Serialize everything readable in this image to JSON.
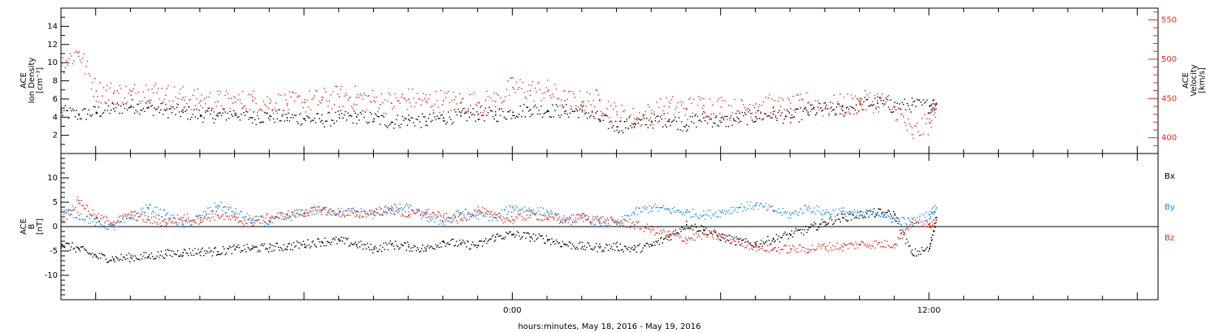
{
  "x_axis_label": "hours:minutes, May 18, 2016 - May 19, 2016",
  "chart_data": [
    {
      "type": "scatter",
      "panel": "top",
      "ylabel_left": [
        "ACE",
        "Ion Density",
        "[cm⁻³]"
      ],
      "ylabel_right": [
        "ACE",
        "Velocity",
        "[km/s]"
      ],
      "ylim_left": [
        0,
        16
      ],
      "ylim_right": [
        380,
        565
      ],
      "left_ticks": [
        2,
        4,
        6,
        8,
        10,
        12,
        14
      ],
      "right_ticks": [
        400,
        450,
        500,
        550
      ],
      "xlim_hours": [
        -13.0,
        18.6
      ],
      "series": [
        {
          "axis": "left",
          "color": "#000000",
          "points": [
            [
              -13.0,
              4.6
            ],
            [
              -12.5,
              4.3
            ],
            [
              -12.0,
              4.6
            ],
            [
              -11.5,
              5.0
            ],
            [
              -11.0,
              5.3
            ],
            [
              -10.5,
              5.1
            ],
            [
              -10.0,
              4.8
            ],
            [
              -9.5,
              4.6
            ],
            [
              -9.0,
              4.3
            ],
            [
              -8.5,
              4.2
            ],
            [
              -8.0,
              4.5
            ],
            [
              -7.5,
              4.0
            ],
            [
              -7.0,
              4.2
            ],
            [
              -6.5,
              4.0
            ],
            [
              -6.0,
              3.9
            ],
            [
              -5.5,
              3.7
            ],
            [
              -5.0,
              4.0
            ],
            [
              -4.5,
              4.1
            ],
            [
              -4.0,
              3.9
            ],
            [
              -3.5,
              3.5
            ],
            [
              -3.0,
              3.8
            ],
            [
              -2.5,
              3.6
            ],
            [
              -2.0,
              4.0
            ],
            [
              -1.5,
              4.2
            ],
            [
              -1.0,
              4.4
            ],
            [
              -0.5,
              4.3
            ],
            [
              0.0,
              4.6
            ],
            [
              0.5,
              4.9
            ],
            [
              1.0,
              4.8
            ],
            [
              1.5,
              4.7
            ],
            [
              2.0,
              4.8
            ],
            [
              2.5,
              3.8
            ],
            [
              3.0,
              3.0
            ],
            [
              3.5,
              3.4
            ],
            [
              4.0,
              3.6
            ],
            [
              4.5,
              3.8
            ],
            [
              5.0,
              3.2
            ],
            [
              5.5,
              4.0
            ],
            [
              6.0,
              3.5
            ],
            [
              6.5,
              3.9
            ],
            [
              7.0,
              4.1
            ],
            [
              7.5,
              4.4
            ],
            [
              8.0,
              4.0
            ],
            [
              8.5,
              4.6
            ],
            [
              9.0,
              5.0
            ],
            [
              9.5,
              4.8
            ],
            [
              10.0,
              5.5
            ],
            [
              10.5,
              5.6
            ],
            [
              11.0,
              5.2
            ],
            [
              11.5,
              5.4
            ],
            [
              12.0,
              5.3
            ],
            [
              12.2,
              5.5
            ]
          ]
        },
        {
          "axis": "right",
          "color": "#e8281e",
          "points": [
            [
              -13.0,
              495
            ],
            [
              -12.5,
              510
            ],
            [
              -12.0,
              460
            ],
            [
              -11.5,
              458
            ],
            [
              -11.0,
              455
            ],
            [
              -10.5,
              462
            ],
            [
              -10.0,
              455
            ],
            [
              -9.5,
              452
            ],
            [
              -9.0,
              448
            ],
            [
              -8.5,
              447
            ],
            [
              -8.0,
              446
            ],
            [
              -7.5,
              448
            ],
            [
              -7.0,
              445
            ],
            [
              -6.5,
              444
            ],
            [
              -6.0,
              446
            ],
            [
              -5.5,
              449
            ],
            [
              -5.0,
              453
            ],
            [
              -4.5,
              452
            ],
            [
              -4.0,
              448
            ],
            [
              -3.5,
              445
            ],
            [
              -3.0,
              450
            ],
            [
              -2.5,
              447
            ],
            [
              -2.0,
              448
            ],
            [
              -1.5,
              446
            ],
            [
              -1.0,
              445
            ],
            [
              -0.5,
              447
            ],
            [
              0.0,
              465
            ],
            [
              0.5,
              461
            ],
            [
              1.0,
              460
            ],
            [
              1.5,
              448
            ],
            [
              2.0,
              446
            ],
            [
              2.5,
              448
            ],
            [
              3.0,
              430
            ],
            [
              3.5,
              425
            ],
            [
              4.0,
              432
            ],
            [
              4.5,
              440
            ],
            [
              5.0,
              438
            ],
            [
              5.5,
              442
            ],
            [
              6.0,
              440
            ],
            [
              6.5,
              435
            ],
            [
              7.0,
              444
            ],
            [
              7.5,
              440
            ],
            [
              8.0,
              438
            ],
            [
              8.5,
              445
            ],
            [
              9.0,
              440
            ],
            [
              9.5,
              442
            ],
            [
              10.0,
              445
            ],
            [
              10.5,
              448
            ],
            [
              11.0,
              440
            ],
            [
              11.5,
              405
            ],
            [
              12.0,
              420
            ],
            [
              12.2,
              445
            ]
          ]
        }
      ]
    },
    {
      "type": "scatter",
      "panel": "bottom",
      "ylabel_left": [
        "ACE",
        "B",
        "[nT]"
      ],
      "ylim": [
        -15,
        15
      ],
      "ticks": [
        -10,
        -5,
        0,
        5,
        10
      ],
      "xlim_hours": [
        -13.0,
        18.6
      ],
      "x_ticks": [
        "0:00",
        "12:00"
      ],
      "legend_placement": "right",
      "series": [
        {
          "name": "Bx",
          "color": "#000000",
          "points": [
            [
              -13.0,
              -3.5
            ],
            [
              -12.5,
              -4.5
            ],
            [
              -12.0,
              -6.0
            ],
            [
              -11.5,
              -6.5
            ],
            [
              -11.0,
              -6.2
            ],
            [
              -10.5,
              -6.0
            ],
            [
              -10.0,
              -5.5
            ],
            [
              -9.5,
              -5.2
            ],
            [
              -9.0,
              -5.0
            ],
            [
              -8.5,
              -5.0
            ],
            [
              -8.0,
              -4.5
            ],
            [
              -7.5,
              -4.4
            ],
            [
              -7.0,
              -4.2
            ],
            [
              -6.5,
              -4.0
            ],
            [
              -6.0,
              -3.5
            ],
            [
              -5.5,
              -3.0
            ],
            [
              -5.0,
              -2.8
            ],
            [
              -4.5,
              -3.5
            ],
            [
              -4.0,
              -4.5
            ],
            [
              -3.5,
              -3.6
            ],
            [
              -3.0,
              -4.0
            ],
            [
              -2.5,
              -4.5
            ],
            [
              -2.0,
              -3.0
            ],
            [
              -1.5,
              -3.5
            ],
            [
              -1.0,
              -3.8
            ],
            [
              -0.5,
              -2.0
            ],
            [
              0.0,
              -1.5
            ],
            [
              0.5,
              -2.0
            ],
            [
              1.0,
              -2.5
            ],
            [
              1.5,
              -3.5
            ],
            [
              2.0,
              -4.0
            ],
            [
              2.5,
              -4.2
            ],
            [
              3.0,
              -4.0
            ],
            [
              3.5,
              -4.5
            ],
            [
              4.0,
              -3.8
            ],
            [
              4.5,
              -2.0
            ],
            [
              5.0,
              0.5
            ],
            [
              5.5,
              -0.5
            ],
            [
              6.0,
              -2.0
            ],
            [
              6.5,
              -3.0
            ],
            [
              7.0,
              -3.5
            ],
            [
              7.5,
              -2.5
            ],
            [
              8.0,
              -1.5
            ],
            [
              8.5,
              -0.5
            ],
            [
              9.0,
              1.0
            ],
            [
              9.5,
              2.0
            ],
            [
              10.0,
              2.5
            ],
            [
              10.5,
              3.0
            ],
            [
              11.0,
              2.5
            ],
            [
              11.5,
              -5.5
            ],
            [
              12.0,
              -4.5
            ],
            [
              12.2,
              2.0
            ]
          ]
        },
        {
          "name": "By",
          "color": "#1e8be6",
          "points": [
            [
              -13.0,
              3.5
            ],
            [
              -12.5,
              2.5
            ],
            [
              -12.0,
              1.0
            ],
            [
              -11.5,
              0.0
            ],
            [
              -11.0,
              2.0
            ],
            [
              -10.5,
              4.0
            ],
            [
              -10.0,
              2.5
            ],
            [
              -9.5,
              0.5
            ],
            [
              -9.0,
              2.0
            ],
            [
              -8.5,
              4.5
            ],
            [
              -8.0,
              3.0
            ],
            [
              -7.5,
              1.5
            ],
            [
              -7.0,
              1.0
            ],
            [
              -6.5,
              2.0
            ],
            [
              -6.0,
              3.0
            ],
            [
              -5.5,
              3.5
            ],
            [
              -5.0,
              3.0
            ],
            [
              -4.5,
              3.2
            ],
            [
              -4.0,
              2.5
            ],
            [
              -3.5,
              3.8
            ],
            [
              -3.0,
              4.0
            ],
            [
              -2.5,
              2.0
            ],
            [
              -2.0,
              1.0
            ],
            [
              -1.5,
              3.0
            ],
            [
              -1.0,
              2.5
            ],
            [
              -0.5,
              2.0
            ],
            [
              0.0,
              4.0
            ],
            [
              0.5,
              3.5
            ],
            [
              1.0,
              3.0
            ],
            [
              1.5,
              1.0
            ],
            [
              2.0,
              2.0
            ],
            [
              2.5,
              1.0
            ],
            [
              3.0,
              0.5
            ],
            [
              3.5,
              3.0
            ],
            [
              4.0,
              4.0
            ],
            [
              4.5,
              3.5
            ],
            [
              5.0,
              3.0
            ],
            [
              5.5,
              2.5
            ],
            [
              6.0,
              3.0
            ],
            [
              6.5,
              4.0
            ],
            [
              7.0,
              4.5
            ],
            [
              7.5,
              3.5
            ],
            [
              8.0,
              2.5
            ],
            [
              8.5,
              4.0
            ],
            [
              9.0,
              3.0
            ],
            [
              9.5,
              3.2
            ],
            [
              10.0,
              2.5
            ],
            [
              10.5,
              3.0
            ],
            [
              11.0,
              1.5
            ],
            [
              11.5,
              1.0
            ],
            [
              12.0,
              2.5
            ],
            [
              12.2,
              4.0
            ]
          ]
        },
        {
          "name": "Bz",
          "color": "#e8281e",
          "points": [
            [
              -13.0,
              1.0
            ],
            [
              -12.5,
              5.5
            ],
            [
              -12.0,
              2.0
            ],
            [
              -11.5,
              1.0
            ],
            [
              -11.0,
              2.5
            ],
            [
              -10.5,
              1.5
            ],
            [
              -10.0,
              1.0
            ],
            [
              -9.5,
              2.0
            ],
            [
              -9.0,
              1.5
            ],
            [
              -8.5,
              2.5
            ],
            [
              -8.0,
              1.5
            ],
            [
              -7.5,
              1.0
            ],
            [
              -7.0,
              2.0
            ],
            [
              -6.5,
              2.5
            ],
            [
              -6.0,
              3.0
            ],
            [
              -5.5,
              3.5
            ],
            [
              -5.0,
              3.0
            ],
            [
              -4.5,
              2.5
            ],
            [
              -4.0,
              3.2
            ],
            [
              -3.5,
              3.5
            ],
            [
              -3.0,
              2.5
            ],
            [
              -2.5,
              3.0
            ],
            [
              -2.0,
              2.0
            ],
            [
              -1.5,
              1.5
            ],
            [
              -1.0,
              3.5
            ],
            [
              -0.5,
              2.0
            ],
            [
              0.0,
              1.5
            ],
            [
              0.5,
              2.5
            ],
            [
              1.0,
              2.0
            ],
            [
              1.5,
              1.5
            ],
            [
              2.0,
              2.0
            ],
            [
              2.5,
              1.5
            ],
            [
              3.0,
              1.0
            ],
            [
              3.5,
              0.5
            ],
            [
              4.0,
              -0.5
            ],
            [
              4.5,
              -1.5
            ],
            [
              5.0,
              -2.5
            ],
            [
              5.5,
              -1.5
            ],
            [
              6.0,
              -2.0
            ],
            [
              6.5,
              -3.0
            ],
            [
              7.0,
              -4.0
            ],
            [
              7.5,
              -4.5
            ],
            [
              8.0,
              -4.5
            ],
            [
              8.5,
              -4.5
            ],
            [
              9.0,
              -4.0
            ],
            [
              9.5,
              -4.0
            ],
            [
              10.0,
              -3.5
            ],
            [
              10.5,
              -3.5
            ],
            [
              11.0,
              -3.5
            ],
            [
              11.5,
              1.0
            ],
            [
              12.0,
              0.5
            ],
            [
              12.2,
              1.5
            ]
          ]
        }
      ]
    }
  ]
}
